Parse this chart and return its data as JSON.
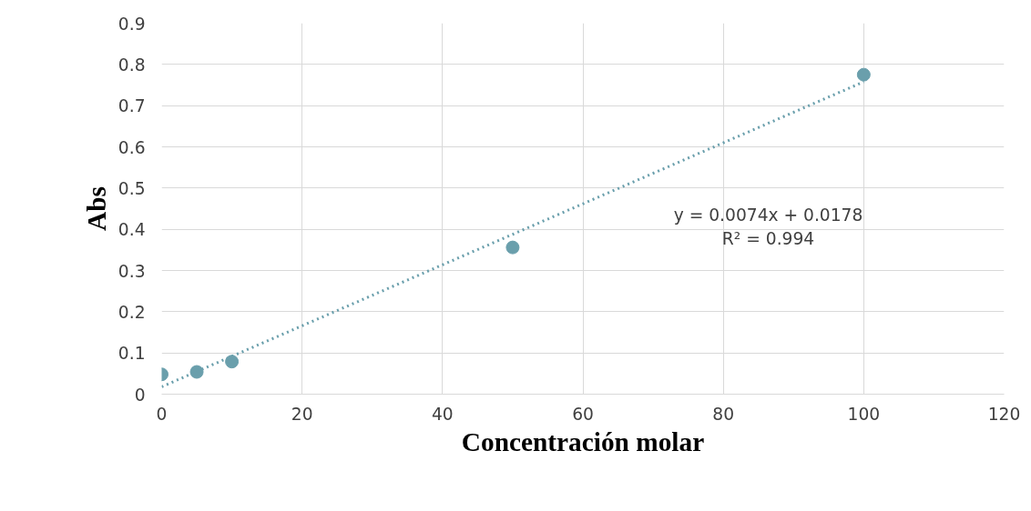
{
  "chart_data": {
    "type": "scatter",
    "xlabel": "Concentración molar",
    "ylabel": "Abs",
    "xlim": [
      0,
      120
    ],
    "xticks": [
      0,
      20,
      40,
      60,
      80,
      100,
      120
    ],
    "ylim": [
      0,
      0.9
    ],
    "yticks": [
      0,
      0.1,
      0.2,
      0.3,
      0.4,
      0.5,
      0.6,
      0.7,
      0.8,
      0.9
    ],
    "grid": true,
    "series": [
      {
        "marker": "circle",
        "color": "#6a9fac",
        "x": [
          0,
          5,
          10,
          50,
          100
        ],
        "values": [
          0.048,
          0.054,
          0.079,
          0.356,
          0.775
        ]
      },
      {
        "type": "line",
        "color": "#6a9fac",
        "line_style": "dotted",
        "x": [
          0,
          100
        ],
        "values": [
          0.0178,
          0.7578
        ]
      }
    ],
    "annotations": [
      "y = 0.0074x + 0.0178",
      "R² = 0.994"
    ]
  }
}
